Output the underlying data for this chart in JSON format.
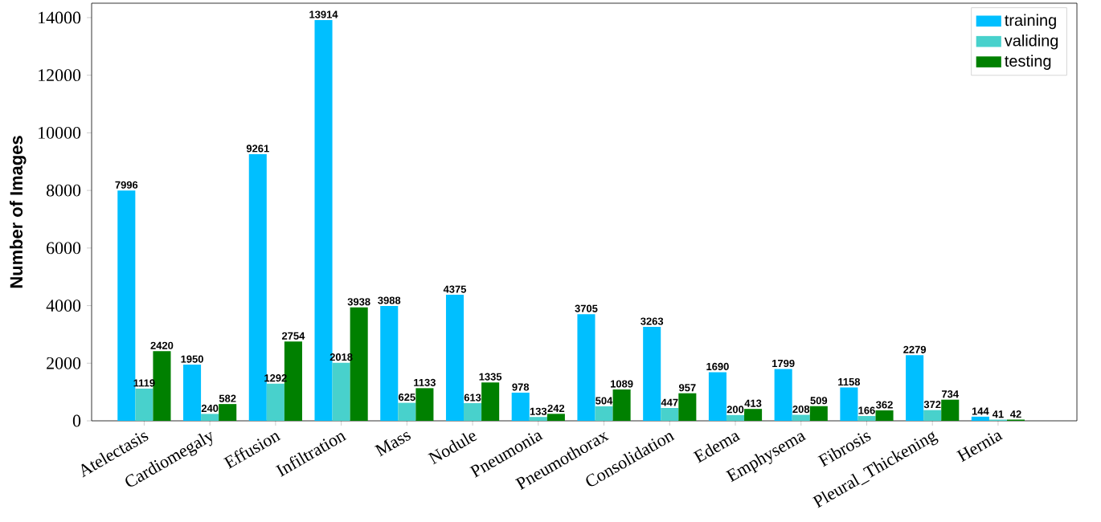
{
  "chart_data": {
    "type": "bar",
    "ylabel": "Number of Images",
    "categories": [
      "Atelectasis",
      "Cardiomegaly",
      "Effusion",
      "Infiltration",
      "Mass",
      "Nodule",
      "Pneumonia",
      "Pneumothorax",
      "Consolidation",
      "Edema",
      "Emphysema",
      "Fibrosis",
      "Pleural_Thickening",
      "Hernia"
    ],
    "series": [
      {
        "name": "training",
        "color": "#00bfff",
        "values": [
          7996,
          1950,
          9261,
          13914,
          3988,
          4375,
          978,
          3705,
          3263,
          1690,
          1799,
          1158,
          2279,
          144
        ]
      },
      {
        "name": "validing",
        "color": "#48d1cc",
        "values": [
          1119,
          240,
          1292,
          2018,
          625,
          613,
          133,
          504,
          447,
          200,
          208,
          166,
          372,
          41
        ]
      },
      {
        "name": "testing",
        "color": "#008000",
        "values": [
          2420,
          582,
          2754,
          3938,
          1133,
          1335,
          242,
          1089,
          957,
          413,
          509,
          362,
          734,
          42
        ]
      }
    ],
    "ylim": [
      0,
      14500
    ],
    "yticks": [
      0,
      2000,
      4000,
      6000,
      8000,
      10000,
      12000,
      14000
    ],
    "data_labels": true,
    "legend": "top right",
    "grid": false
  }
}
